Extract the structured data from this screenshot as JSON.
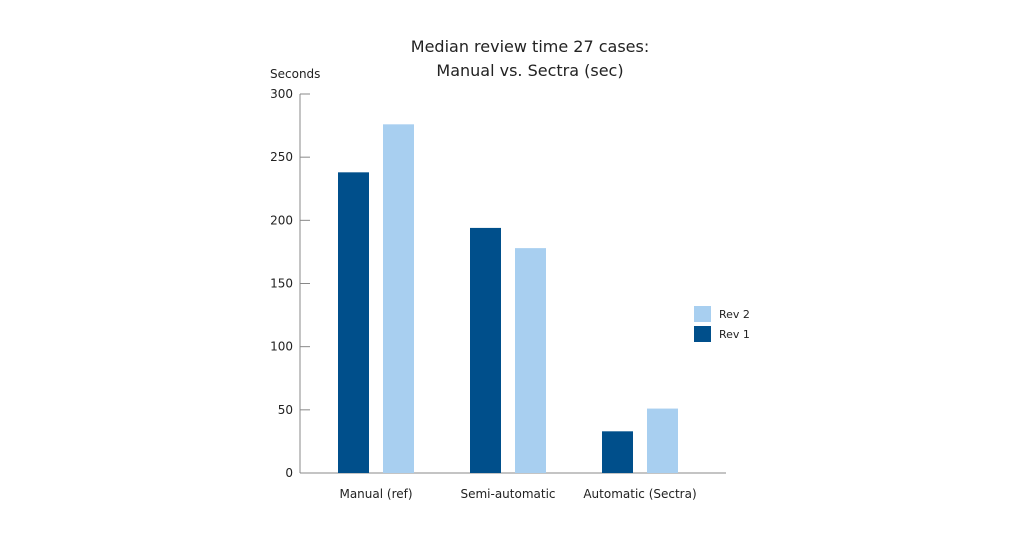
{
  "chart_data": {
    "type": "bar",
    "title": [
      "Median review time 27 cases:",
      "Manual vs. Sectra (sec)"
    ],
    "xlabel": "",
    "ylabel": "Seconds",
    "ylim": [
      0,
      300
    ],
    "yticks": [
      0,
      50,
      100,
      150,
      200,
      250,
      300
    ],
    "grid": false,
    "legend_position": "right",
    "categories": [
      "Manual (ref)",
      "Semi-automatic",
      "Automatic (Sectra)"
    ],
    "series": [
      {
        "name": "Rev 1",
        "color": "#004f8b",
        "values": [
          238,
          194,
          33
        ]
      },
      {
        "name": "Rev 2",
        "color": "#a8cff0",
        "values": [
          276,
          178,
          51
        ]
      }
    ],
    "legend_order": [
      "Rev 2",
      "Rev 1"
    ]
  }
}
